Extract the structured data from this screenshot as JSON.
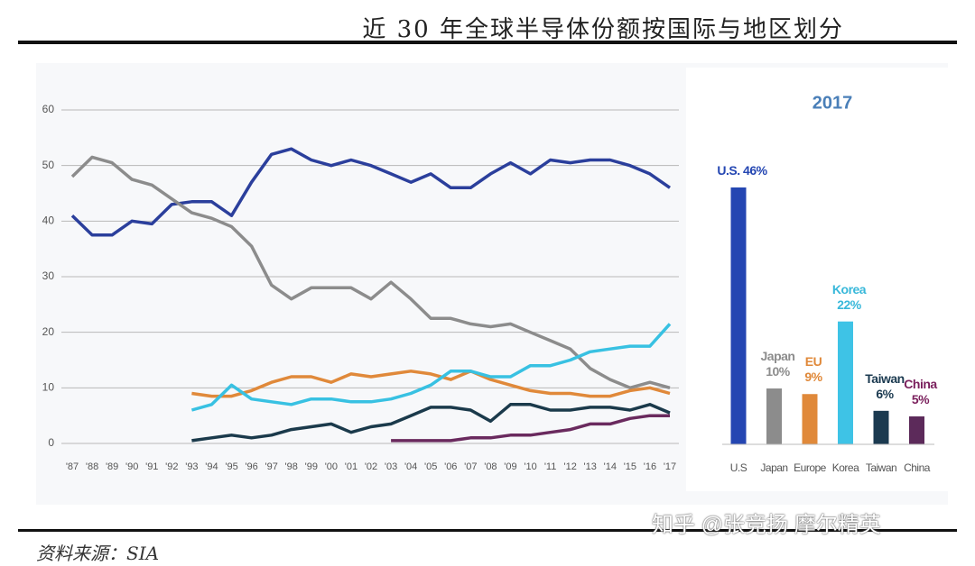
{
  "header": {
    "title": "近 30 年全球半导体份额按国际与地区划分"
  },
  "chart_data": [
    {
      "type": "line",
      "categories": [
        "'87",
        "'88",
        "'89",
        "'90",
        "'91",
        "'92",
        "'93",
        "'94",
        "'95",
        "'96",
        "'97",
        "'98",
        "'99",
        "'00",
        "'01",
        "'02",
        "'03",
        "'04",
        "'05",
        "'06",
        "'07",
        "'08",
        "'09",
        "'10",
        "'11",
        "'12",
        "'13",
        "'14",
        "'15",
        "'16",
        "'17"
      ],
      "ylim": [
        0,
        60
      ],
      "yticks": [
        0,
        10,
        20,
        30,
        40,
        50,
        60
      ],
      "grid": true,
      "series": [
        {
          "color": "#2b3f9c",
          "values": [
            41,
            37.5,
            37.5,
            40,
            39.5,
            43,
            43.5,
            43.5,
            41,
            47,
            52,
            53,
            51,
            50,
            51,
            50,
            48.5,
            47,
            48.5,
            46,
            46,
            48.5,
            50.5,
            48.5,
            51,
            50.5,
            51,
            51,
            50,
            48.5,
            46
          ]
        },
        {
          "color": "#8c8c8c",
          "values": [
            48,
            51.5,
            50.5,
            47.5,
            46.5,
            44,
            41.5,
            40.5,
            39,
            35.5,
            28.5,
            26,
            28,
            28,
            28,
            26,
            29,
            26,
            22.5,
            22.5,
            21.5,
            21,
            21.5,
            20,
            18.5,
            17,
            13.5,
            11.5,
            10,
            11,
            10
          ]
        },
        {
          "color": "#e0893a",
          "values": [
            null,
            null,
            null,
            null,
            null,
            null,
            9,
            8.5,
            8.5,
            9.5,
            11,
            12,
            12,
            11,
            12.5,
            12,
            12.5,
            13,
            12.5,
            11.5,
            13,
            11.5,
            10.5,
            9.5,
            9,
            9,
            8.5,
            8.5,
            9.5,
            10,
            9
          ]
        },
        {
          "color": "#38c1e2",
          "values": [
            null,
            null,
            null,
            null,
            null,
            null,
            6,
            7,
            10.5,
            8,
            7.5,
            7,
            8,
            8,
            7.5,
            7.5,
            8,
            9,
            10.5,
            13,
            13,
            12,
            12,
            14,
            14,
            15,
            16.5,
            17,
            17.5,
            17.5,
            21.5
          ]
        },
        {
          "color": "#1b3a4b",
          "values": [
            null,
            null,
            null,
            null,
            null,
            null,
            0.5,
            1,
            1.5,
            1,
            1.5,
            2.5,
            3,
            3.5,
            2,
            3,
            3.5,
            5,
            6.5,
            6.5,
            6,
            4,
            7,
            7,
            6,
            6,
            6.5,
            6.5,
            6,
            7,
            5.5
          ]
        },
        {
          "color": "#6a2a5e",
          "values": [
            null,
            null,
            null,
            null,
            null,
            null,
            null,
            null,
            null,
            null,
            null,
            null,
            null,
            null,
            null,
            null,
            0.5,
            0.5,
            0.5,
            0.5,
            1,
            1,
            1.5,
            1.5,
            2,
            2.5,
            3.5,
            3.5,
            4.5,
            5,
            5
          ]
        }
      ]
    },
    {
      "type": "bar",
      "title": "2017",
      "categories": [
        "U.S",
        "Japan",
        "Europe",
        "Korea",
        "Taiwan",
        "China"
      ],
      "values": [
        46,
        10,
        9,
        22,
        6,
        5
      ],
      "value_labels": [
        "U.S. 46%",
        "Japan\n10%",
        "EU\n9%",
        "Korea\n22%",
        "Taiwan\n6%",
        "China\n5%"
      ],
      "colors": [
        "#2446b2",
        "#8c8c8c",
        "#e0893a",
        "#3ec3e6",
        "#1b3a50",
        "#5c2a5a"
      ],
      "label_colors": [
        "#2446b2",
        "#8c8c8c",
        "#e0893a",
        "#38b8da",
        "#1b3a50",
        "#7a1f5c"
      ]
    }
  ],
  "source": "资料来源：SIA",
  "watermark": "知乎 @张竞扬 摩尔精英"
}
